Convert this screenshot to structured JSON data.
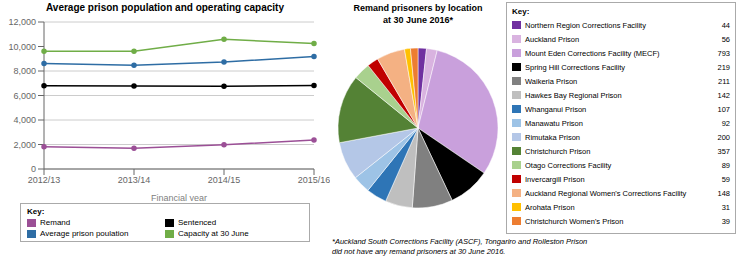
{
  "chart_data": [
    {
      "type": "line",
      "title": "Average prison population and operating capacity",
      "xlabel": "Financial year",
      "categories": [
        "2012/13",
        "2013/14",
        "2014/15",
        "2015/16"
      ],
      "series": [
        {
          "name": "Remand",
          "color": "#9b4f96",
          "values": [
            1825,
            1694,
            1978,
            2377
          ]
        },
        {
          "name": "Sentenced",
          "color": "#000000",
          "values": [
            6789,
            6766,
            6754,
            6816
          ]
        },
        {
          "name": "Average prison poulation",
          "color": "#2e6da4",
          "values": [
            8614,
            8460,
            8732,
            9193
          ]
        },
        {
          "name": "Capacity at 30 June",
          "color": "#70ad47",
          "values": [
            9619,
            9619,
            10582,
            10250
          ]
        }
      ],
      "ylim": [
        0,
        12000
      ],
      "yticks": [
        0,
        {
          "value": 2000,
          "label": "2,000"
        },
        {
          "value": 4000,
          "label": "4,000"
        },
        {
          "value": 6000,
          "label": "6,000"
        },
        {
          "value": 8000,
          "label": "8,000"
        },
        {
          "value": 10000,
          "label": "10,000"
        },
        {
          "value": 12000,
          "label": "12,000"
        }
      ],
      "grid": true,
      "marker": "circle",
      "legend": "bottom",
      "legend_title": "Key:"
    },
    {
      "type": "pie",
      "title": "Remand prisoners by location\nat 30 June 2016*",
      "categories": [
        "Northern Region Corrections Facility",
        "Auckland Prison",
        "Mount Eden Corrections Facility (MECF)",
        "Spring Hill Corrections Facility",
        "Waikeria Prison",
        "Hawkes Bay Regional Prison",
        "Whanganui Prison",
        "Manawatu Prison",
        "Rimutaka Prison",
        "Christchurch Prison",
        "Otago Corrections Facility",
        "Invercargill Prison",
        "Auckland Regional Women's Corrections Facility",
        "Arohata Prison",
        "Christchurch Women's Prison"
      ],
      "values": [
        44,
        56,
        793,
        219,
        211,
        142,
        107,
        92,
        200,
        357,
        89,
        59,
        148,
        31,
        39
      ],
      "colors": [
        "#7030a0",
        "#d9b3e0",
        "#c9a0dc",
        "#000000",
        "#808080",
        "#bfbfbf",
        "#2e75b6",
        "#9dc3e6",
        "#b4c7e7",
        "#548235",
        "#a9d18e",
        "#c00000",
        "#f4b183",
        "#ffc000",
        "#ed7d31"
      ],
      "legend": "right",
      "legend_title": "Key:",
      "annotations": [
        "*Auckland South Corrections Facility (ASCF), Tongariro and Rolleston Prison\ndid not have any remand prisoners at 30 June 2016."
      ]
    }
  ]
}
